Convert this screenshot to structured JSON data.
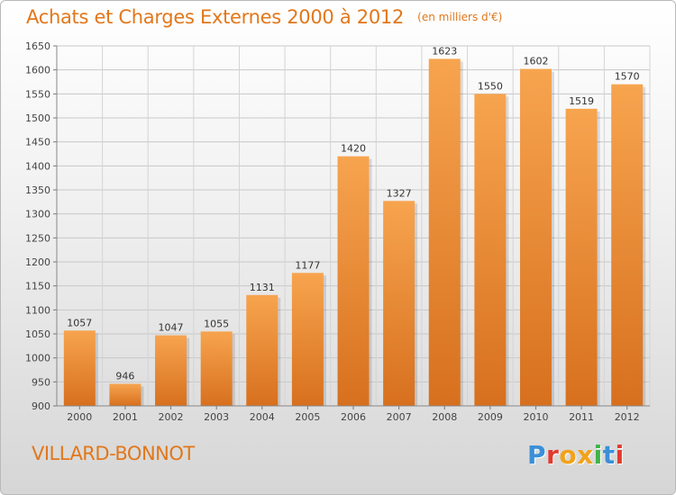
{
  "header": {
    "title": "Achats et Charges Externes 2000 à 2012",
    "subtitle": "(en milliers d'€)"
  },
  "footer": {
    "commune": "VILLARD-BONNOT",
    "logo_text": "Proxiti",
    "logo_colors": [
      "#3a8fd8",
      "#e23b2e",
      "#f2a21b",
      "#f2a21b",
      "#3fb34a",
      "#3a8fd8",
      "#e23b2e"
    ]
  },
  "chart_data": {
    "type": "bar",
    "categories": [
      "2000",
      "2001",
      "2002",
      "2003",
      "2004",
      "2005",
      "2006",
      "2007",
      "2008",
      "2009",
      "2010",
      "2011",
      "2012"
    ],
    "values": [
      1057,
      946,
      1047,
      1055,
      1131,
      1177,
      1420,
      1327,
      1623,
      1550,
      1602,
      1519,
      1570
    ],
    "ylim": [
      900,
      1650
    ],
    "yticks": [
      900,
      950,
      1000,
      1050,
      1100,
      1150,
      1200,
      1250,
      1300,
      1350,
      1400,
      1450,
      1500,
      1550,
      1600,
      1650
    ],
    "grid": true,
    "bar_color_top": "#f7a44f",
    "bar_color_bottom": "#d7701e"
  }
}
